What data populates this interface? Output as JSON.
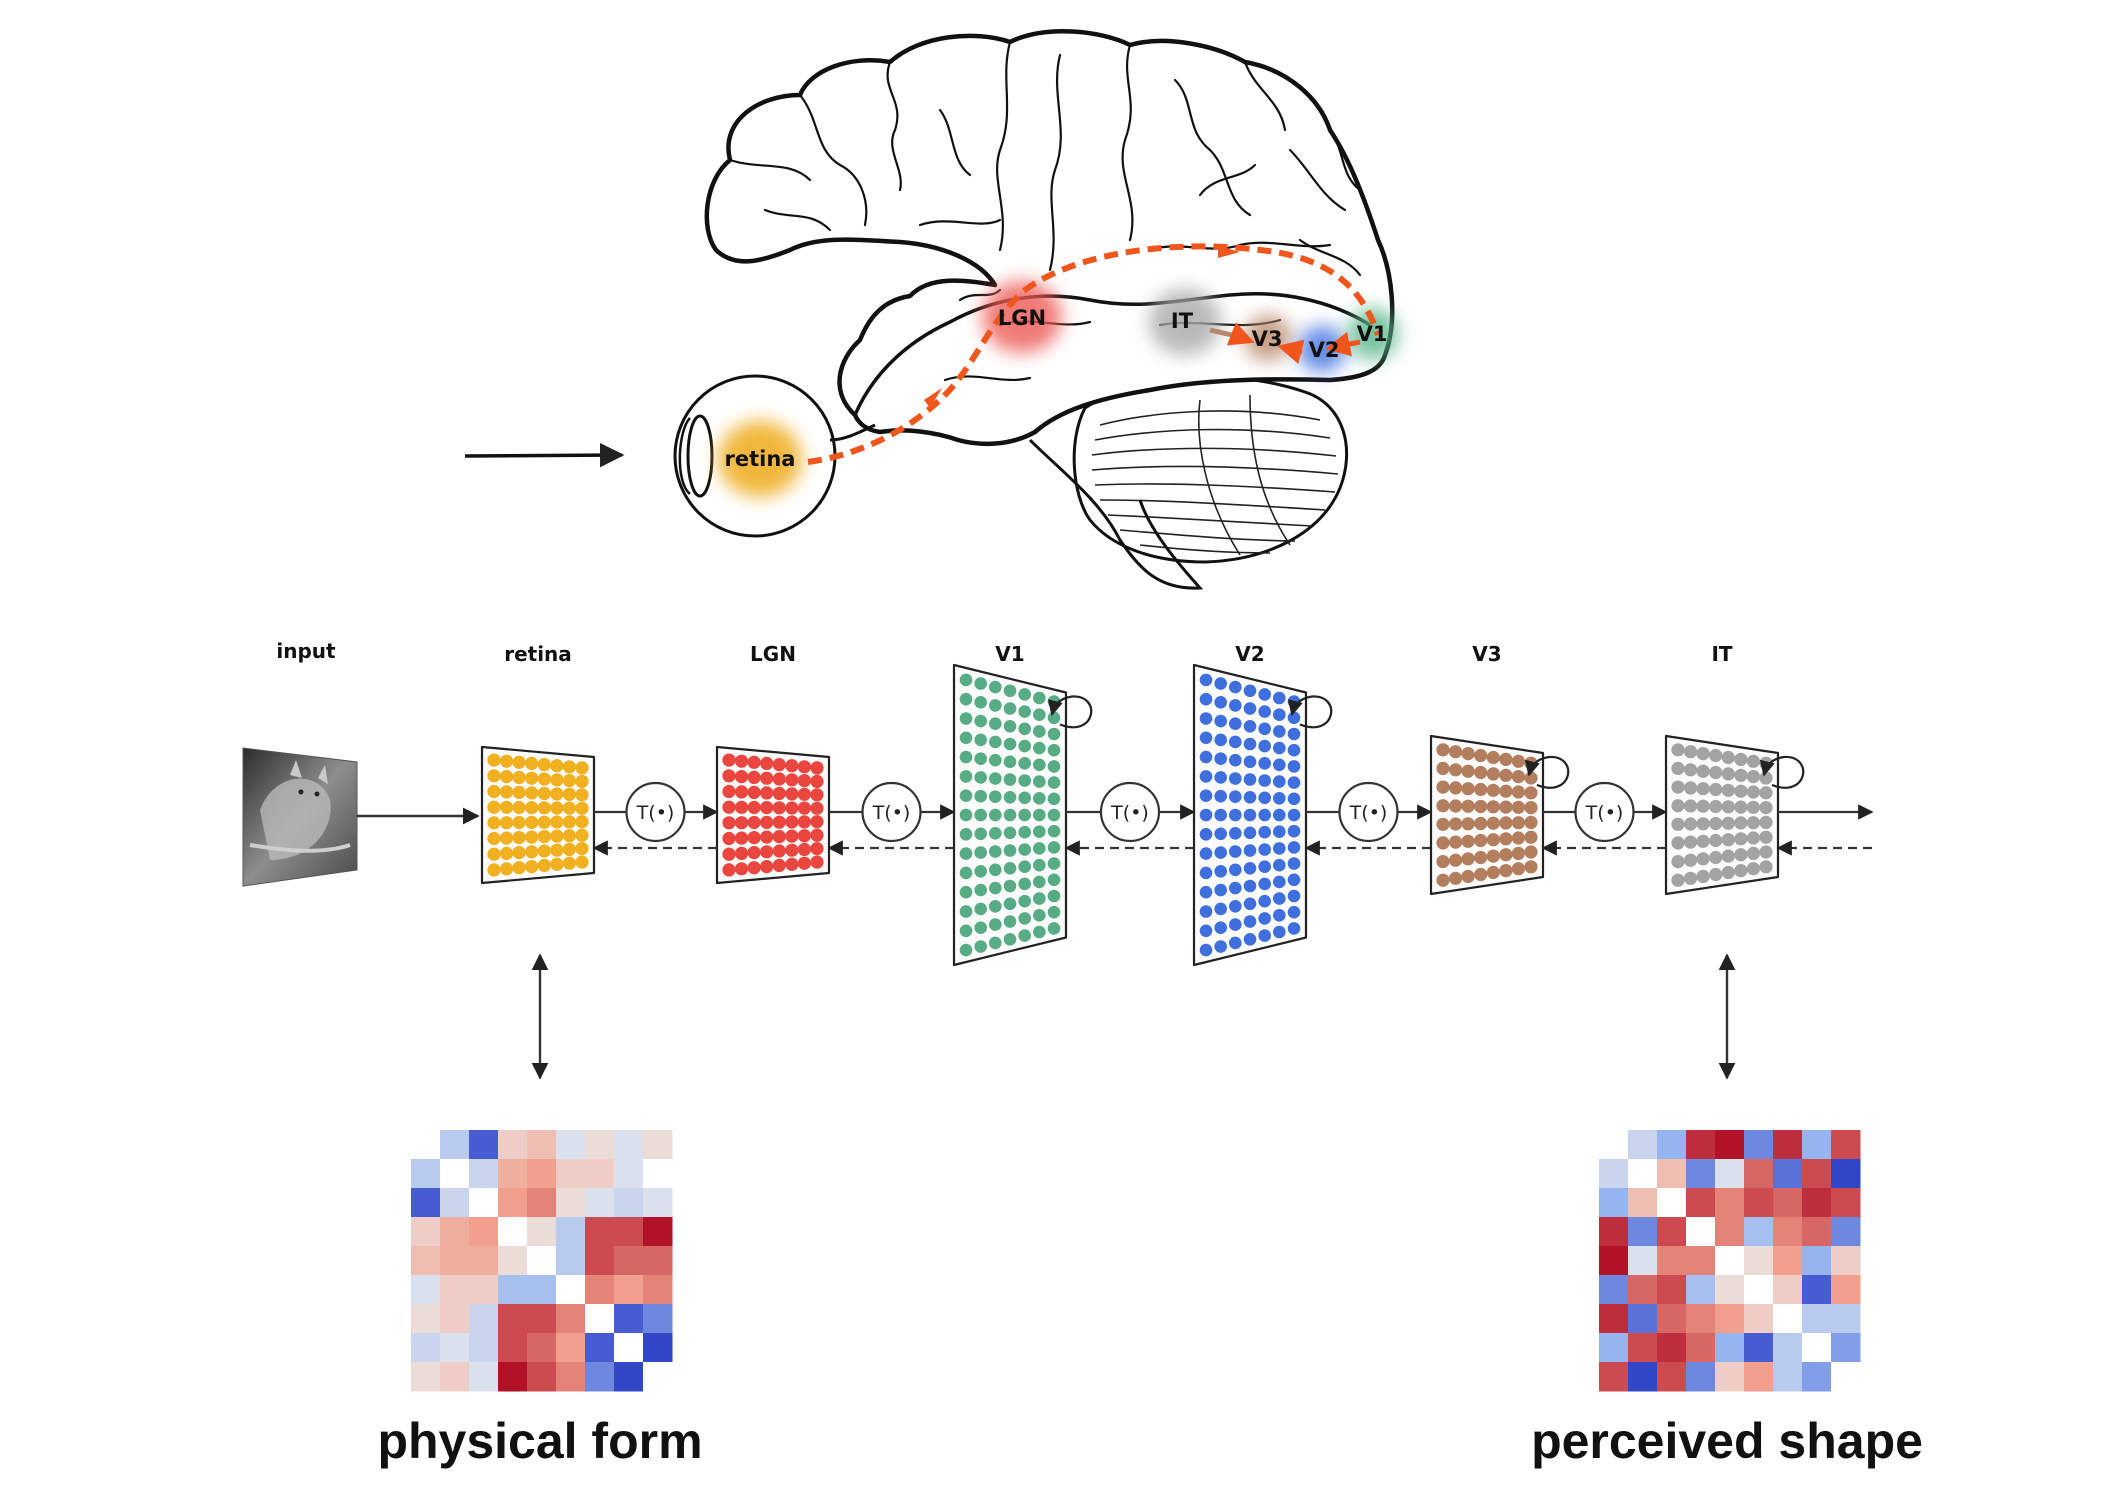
{
  "brain": {
    "areas": [
      {
        "key": "retina",
        "label": "retina",
        "color": "#f0b432"
      },
      {
        "key": "lgn",
        "label": "LGN",
        "color": "#ec5a55"
      },
      {
        "key": "it",
        "label": "IT",
        "color": "#a8a8a8"
      },
      {
        "key": "v3",
        "label": "V3",
        "color": "#b9876a"
      },
      {
        "key": "v2",
        "label": "V2",
        "color": "#3f6fe0"
      },
      {
        "key": "v1",
        "label": "V1",
        "color": "#59b58a"
      }
    ],
    "pathway_color": "#f0561c",
    "outline_color": "#111111"
  },
  "pipeline": {
    "input_label": "input",
    "stages": [
      {
        "key": "retina",
        "label": "retina",
        "color": "#f0b020",
        "recurrent": false
      },
      {
        "key": "lgn",
        "label": "LGN",
        "color": "#e9463f",
        "recurrent": false
      },
      {
        "key": "v1",
        "label": "V1",
        "color": "#58ac85",
        "recurrent": true
      },
      {
        "key": "v2",
        "label": "V2",
        "color": "#3e6fdd",
        "recurrent": true
      },
      {
        "key": "v3",
        "label": "V3",
        "color": "#b37e5e",
        "recurrent": true
      },
      {
        "key": "it",
        "label": "IT",
        "color": "#a3a3a3",
        "recurrent": true
      }
    ],
    "operator_label": "T(•)"
  },
  "matrices": [
    {
      "key": "physical",
      "caption": "physical form",
      "values": [
        [
          0.0,
          -0.3,
          -0.9,
          0.2,
          0.3,
          -0.1,
          0.1,
          -0.1,
          0.1
        ],
        [
          -0.3,
          0.0,
          -0.2,
          0.4,
          0.5,
          0.2,
          0.2,
          -0.1,
          0.0
        ],
        [
          -0.9,
          -0.2,
          0.0,
          0.5,
          0.6,
          0.1,
          -0.1,
          -0.2,
          -0.1
        ],
        [
          0.2,
          0.4,
          0.5,
          0.0,
          0.1,
          -0.3,
          0.8,
          0.8,
          1.0
        ],
        [
          0.3,
          0.4,
          0.4,
          0.1,
          0.0,
          -0.3,
          0.8,
          0.7,
          0.7
        ],
        [
          -0.1,
          0.2,
          0.2,
          -0.4,
          -0.4,
          0.0,
          0.6,
          0.5,
          0.6
        ],
        [
          0.1,
          0.2,
          -0.2,
          0.8,
          0.8,
          0.6,
          0.0,
          -0.9,
          -0.7
        ],
        [
          -0.2,
          -0.1,
          -0.2,
          0.8,
          0.7,
          0.5,
          -0.9,
          0.0,
          -1.0
        ],
        [
          0.1,
          0.2,
          -0.1,
          1.0,
          0.8,
          0.6,
          -0.7,
          -1.0,
          0.0
        ]
      ]
    },
    {
      "key": "perceived",
      "caption": "perceived shape",
      "values": [
        [
          0.0,
          -0.2,
          -0.5,
          0.9,
          1.0,
          -0.7,
          0.9,
          -0.5,
          0.8
        ],
        [
          -0.2,
          0.0,
          0.3,
          -0.7,
          -0.1,
          0.7,
          -0.8,
          0.8,
          -1.0
        ],
        [
          -0.5,
          0.3,
          0.0,
          0.8,
          0.6,
          0.8,
          0.7,
          0.9,
          0.8
        ],
        [
          0.9,
          -0.7,
          0.8,
          0.0,
          0.6,
          -0.4,
          0.6,
          0.7,
          -0.7
        ],
        [
          1.0,
          -0.1,
          0.6,
          0.6,
          0.0,
          0.1,
          0.5,
          -0.5,
          0.2
        ],
        [
          -0.7,
          0.7,
          0.8,
          -0.4,
          0.1,
          0.0,
          0.2,
          -0.9,
          0.5
        ],
        [
          0.9,
          -0.8,
          0.7,
          0.6,
          0.5,
          0.2,
          0.0,
          -0.3,
          -0.3
        ],
        [
          -0.5,
          0.8,
          0.9,
          0.7,
          -0.5,
          -0.9,
          -0.3,
          0.0,
          -0.6
        ],
        [
          0.8,
          -1.0,
          0.8,
          -0.7,
          0.2,
          0.5,
          -0.3,
          -0.6,
          0.0
        ]
      ]
    }
  ]
}
